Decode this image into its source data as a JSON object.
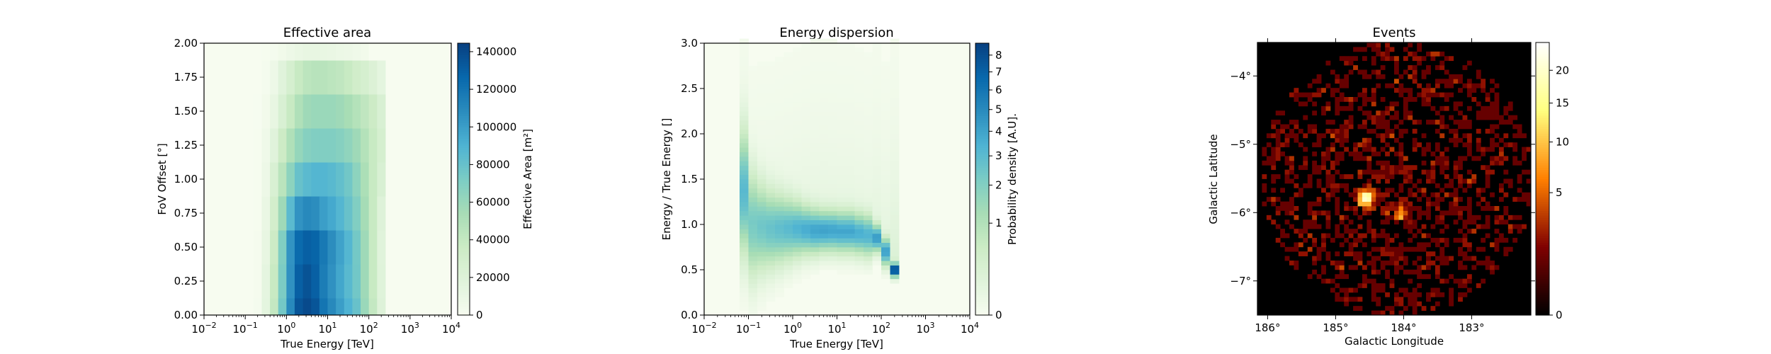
{
  "chart_data": [
    {
      "type": "heatmap",
      "title": "Effective area",
      "xlabel": "True Energy [TeV]",
      "ylabel": "FoV Offset [°]",
      "colorbar_label": "Effective Area [m²]",
      "colormap": "GnBu",
      "x_scale": "log",
      "xlim": [
        0.01,
        10000
      ],
      "ylim": [
        0,
        2
      ],
      "clim": [
        0,
        144500
      ],
      "x_ticks": [
        {
          "base": "10",
          "exp": "−2",
          "v": 0.01
        },
        {
          "base": "10",
          "exp": "−1",
          "v": 0.1
        },
        {
          "base": "10",
          "exp": "0",
          "v": 1
        },
        {
          "base": "10",
          "exp": "1",
          "v": 10
        },
        {
          "base": "10",
          "exp": "2",
          "v": 100
        },
        {
          "base": "10",
          "exp": "3",
          "v": 1000
        },
        {
          "base": "10",
          "exp": "4",
          "v": 10000
        }
      ],
      "y_ticks": [
        "0.00",
        "0.25",
        "0.50",
        "0.75",
        "1.00",
        "1.25",
        "1.50",
        "1.75",
        "2.00"
      ],
      "colorbar_ticks": [
        "0",
        "20000",
        "40000",
        "60000",
        "80000",
        "100000",
        "120000",
        "140000"
      ],
      "energy_bin_log10_edges": [
        -0.8,
        -0.6,
        -0.4,
        -0.2,
        0.0,
        0.2,
        0.4,
        0.6,
        0.8,
        1.0,
        1.2,
        1.4,
        1.6,
        1.8,
        2.0,
        2.2,
        2.4
      ],
      "offset_centers": [
        0,
        0.25,
        0.5,
        0.75,
        1.0,
        1.25,
        1.5,
        1.75,
        2.0
      ],
      "values": [
        [
          2000,
          15000,
          40000,
          75000,
          110000,
          135000,
          140000,
          135000,
          120000,
          110000,
          100000,
          90000,
          80000,
          60000,
          40000,
          20000
        ],
        [
          1800,
          14000,
          38000,
          72000,
          106000,
          130000,
          136000,
          130000,
          116000,
          106000,
          96000,
          86000,
          76000,
          58000,
          38000,
          19000
        ],
        [
          1500,
          12000,
          35000,
          70000,
          105000,
          125000,
          130000,
          128000,
          118000,
          108000,
          98000,
          88000,
          75000,
          58000,
          38000,
          18000
        ],
        [
          1000,
          10000,
          30000,
          58000,
          85000,
          105000,
          110000,
          108000,
          100000,
          95000,
          88000,
          80000,
          70000,
          55000,
          38000,
          20000
        ],
        [
          800,
          8000,
          25000,
          45000,
          65000,
          80000,
          85000,
          88000,
          88000,
          86000,
          82000,
          76000,
          65000,
          52000,
          38000,
          25000
        ],
        [
          600,
          6000,
          18000,
          35000,
          50000,
          62000,
          68000,
          70000,
          70000,
          70000,
          68000,
          64000,
          58000,
          48000,
          38000,
          28000
        ],
        [
          400,
          4000,
          12000,
          25000,
          38000,
          50000,
          58000,
          60000,
          60000,
          60000,
          58000,
          54000,
          48000,
          42000,
          35000,
          25000
        ],
        [
          200,
          2000,
          8000,
          18000,
          28000,
          38000,
          44000,
          46000,
          46000,
          44000,
          42000,
          38000,
          32000,
          28000,
          22000,
          15000
        ],
        [
          0,
          500,
          2000,
          5000,
          8000,
          10000,
          12000,
          12000,
          11000,
          10000,
          9000,
          8000,
          6000,
          4000,
          0,
          0
        ]
      ]
    },
    {
      "type": "heatmap",
      "title": "Energy dispersion",
      "xlabel": "True Energy [TeV]",
      "ylabel": "Energy / True Energy []",
      "colorbar_label": "Probability density [A.U].",
      "colormap": "GnBu",
      "color_stretch": "sqrt",
      "x_scale": "log",
      "xlim": [
        0.01,
        10000
      ],
      "ylim": [
        0,
        3
      ],
      "clim": [
        0,
        8.75
      ],
      "x_ticks": [
        {
          "base": "10",
          "exp": "−2",
          "v": 0.01
        },
        {
          "base": "10",
          "exp": "−1",
          "v": 0.1
        },
        {
          "base": "10",
          "exp": "0",
          "v": 1
        },
        {
          "base": "10",
          "exp": "1",
          "v": 10
        },
        {
          "base": "10",
          "exp": "2",
          "v": 100
        },
        {
          "base": "10",
          "exp": "3",
          "v": 1000
        },
        {
          "base": "10",
          "exp": "4",
          "v": 10000
        }
      ],
      "y_ticks": [
        "0.0",
        "0.5",
        "1.0",
        "1.5",
        "2.0",
        "2.5",
        "3.0"
      ],
      "colorbar_ticks": [
        "0",
        "1",
        "2",
        "3",
        "4",
        "5",
        "6",
        "7",
        "8"
      ],
      "columns": [
        {
          "log10_e_lo": -1.2,
          "mu": 1.35,
          "sigma": 0.35,
          "peak": 3.0
        },
        {
          "log10_e_lo": -1.0,
          "mu": 1.0,
          "sigma": 0.3,
          "peak": 2.2
        },
        {
          "log10_e_lo": -0.8,
          "mu": 0.97,
          "sigma": 0.25,
          "peak": 2.4
        },
        {
          "log10_e_lo": -0.6,
          "mu": 0.95,
          "sigma": 0.22,
          "peak": 2.6
        },
        {
          "log10_e_lo": -0.4,
          "mu": 0.95,
          "sigma": 0.2,
          "peak": 2.8
        },
        {
          "log10_e_lo": -0.2,
          "mu": 0.95,
          "sigma": 0.18,
          "peak": 3.0
        },
        {
          "log10_e_lo": 0.0,
          "mu": 0.95,
          "sigma": 0.16,
          "peak": 3.3
        },
        {
          "log10_e_lo": 0.2,
          "mu": 0.94,
          "sigma": 0.14,
          "peak": 3.6
        },
        {
          "log10_e_lo": 0.4,
          "mu": 0.93,
          "sigma": 0.13,
          "peak": 3.9
        },
        {
          "log10_e_lo": 0.6,
          "mu": 0.93,
          "sigma": 0.12,
          "peak": 4.0
        },
        {
          "log10_e_lo": 0.8,
          "mu": 0.93,
          "sigma": 0.12,
          "peak": 3.9
        },
        {
          "log10_e_lo": 1.0,
          "mu": 0.92,
          "sigma": 0.12,
          "peak": 3.8
        },
        {
          "log10_e_lo": 1.2,
          "mu": 0.92,
          "sigma": 0.12,
          "peak": 3.8
        },
        {
          "log10_e_lo": 1.4,
          "mu": 0.9,
          "sigma": 0.12,
          "peak": 3.5
        },
        {
          "log10_e_lo": 1.6,
          "mu": 0.88,
          "sigma": 0.12,
          "peak": 3.3
        },
        {
          "log10_e_lo": 1.8,
          "mu": 0.85,
          "sigma": 0.08,
          "peak": 4.2
        },
        {
          "log10_e_lo": 2.0,
          "mu": 0.7,
          "sigma": 0.08,
          "peak": 4.0
        },
        {
          "log10_e_lo": 2.2,
          "mu": 0.5,
          "sigma": 0.04,
          "peak": 8.5
        }
      ]
    },
    {
      "type": "heatmap",
      "title": "Events",
      "xlabel": "Galactic Longitude",
      "ylabel": "Galactic Latitude",
      "colormap": "afmhot",
      "color_stretch": "sqrt",
      "xlim": [
        186.15,
        182.13
      ],
      "ylim": [
        -7.5,
        -3.51
      ],
      "clim": [
        0,
        24.8
      ],
      "x_ticks": [
        {
          "label": "186°",
          "v": 186
        },
        {
          "label": "185°",
          "v": 185
        },
        {
          "label": "184°",
          "v": 184
        },
        {
          "label": "183°",
          "v": 183
        }
      ],
      "y_ticks": [
        {
          "label": "−4°",
          "v": -4
        },
        {
          "label": "−5°",
          "v": -5
        },
        {
          "label": "−6°",
          "v": -6
        },
        {
          "label": "−7°",
          "v": -7
        }
      ],
      "colorbar_ticks": [
        {
          "label": "0",
          "v": 0
        },
        {
          "label": "5",
          "v": 5
        },
        {
          "label": "10",
          "v": 10
        },
        {
          "label": "15",
          "v": 15
        },
        {
          "label": "20",
          "v": 20
        }
      ],
      "background": {
        "center_lon": 184.1,
        "center_lat": -5.5,
        "radius_deg": 2.0,
        "mean_counts": 0.6
      },
      "sources": [
        {
          "lon": 184.55,
          "lat": -5.78,
          "peak_counts": 22
        },
        {
          "lon": 184.05,
          "lat": -6.0,
          "peak_counts": 5
        }
      ]
    }
  ]
}
